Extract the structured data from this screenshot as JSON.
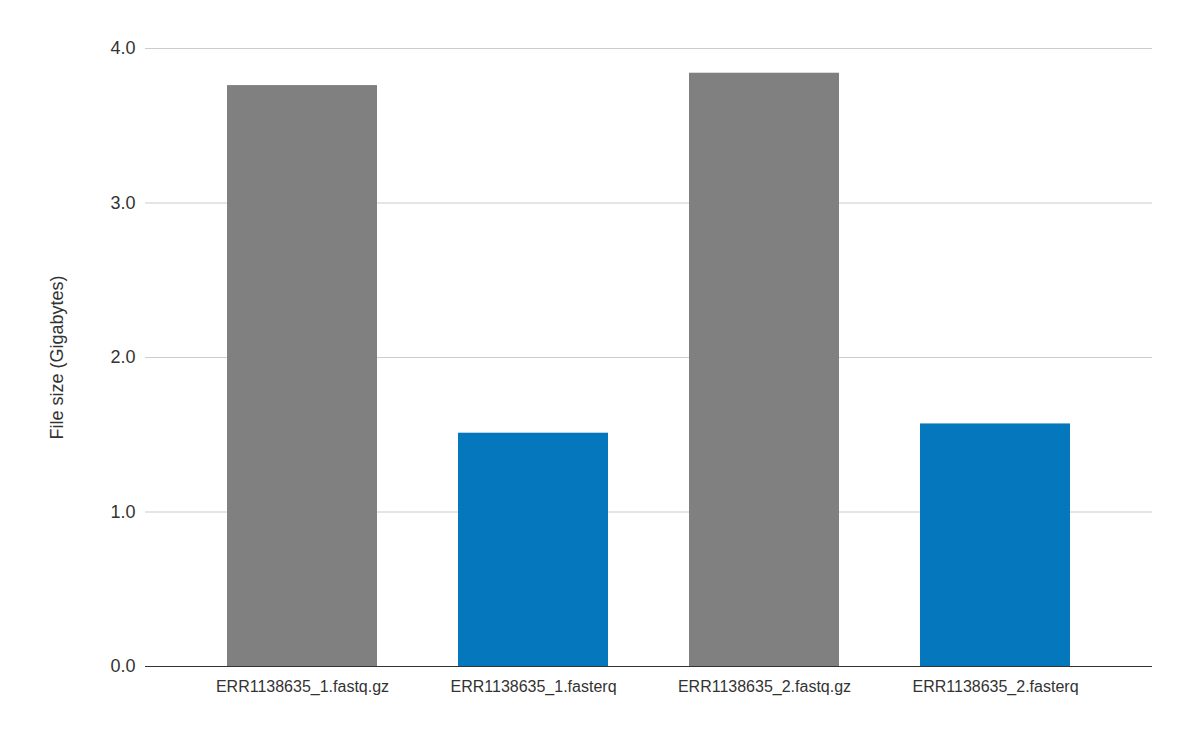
{
  "chart_data": {
    "type": "bar",
    "categories": [
      "ERR1138635_1.fastq.gz",
      "ERR1138635_1.fasterq",
      "ERR1138635_2.fastq.gz",
      "ERR1138635_2.fasterq"
    ],
    "values": [
      3.76,
      1.51,
      3.84,
      1.57
    ],
    "colors": [
      "#808080",
      "#0477bd",
      "#808080",
      "#0477bd"
    ],
    "ylabel": "File size (Gigabytes)",
    "ylim": [
      0,
      4
    ],
    "yticks": [
      0,
      1,
      2,
      3,
      4
    ],
    "grid": true
  }
}
